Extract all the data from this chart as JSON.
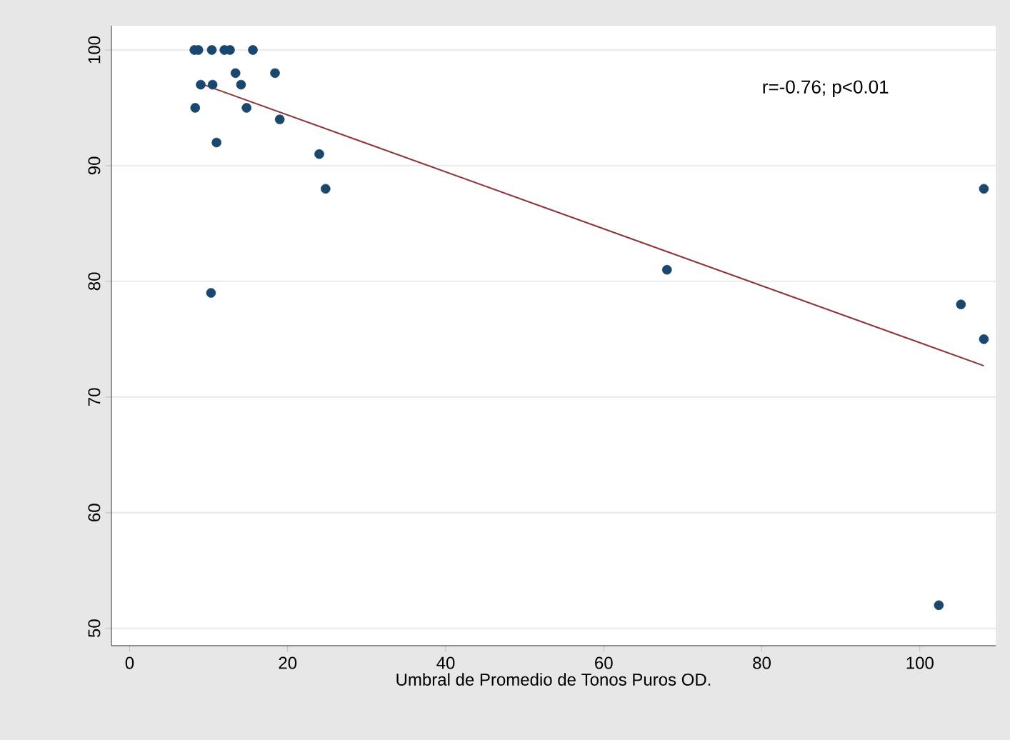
{
  "chart_data": {
    "type": "scatter",
    "xlabel": "Umbral de Promedio de Tonos Puros OD.",
    "annotations": [
      "r=-0.76; p<0.01"
    ],
    "xlim": [
      -2.3,
      109.6
    ],
    "ylim": [
      48.5,
      102.1
    ],
    "xticks": [
      0,
      20,
      40,
      60,
      80,
      100
    ],
    "yticks": [
      50,
      60,
      70,
      80,
      90,
      100
    ],
    "grid": "y",
    "series": [
      {
        "color": "#1a476f",
        "marker": "circle",
        "x": [
          8.2,
          8.7,
          10.4,
          12.0,
          12.7,
          15.6,
          13.4,
          18.4,
          9.0,
          10.5,
          14.1,
          8.3,
          14.8,
          19.0,
          11.0,
          24.0,
          24.8,
          10.3,
          68.0,
          108.1,
          105.2,
          108.1,
          102.4
        ],
        "values": [
          100,
          100,
          100,
          100,
          100,
          100,
          98,
          98,
          97,
          97,
          97,
          95,
          95,
          94,
          92,
          91,
          88,
          79,
          81,
          88,
          78,
          75,
          52
        ]
      },
      {
        "type": "line",
        "marker": "none",
        "color": "#90353b",
        "x": [
          8.55,
          108.1
        ],
        "values": [
          97.2,
          72.7
        ]
      }
    ]
  }
}
